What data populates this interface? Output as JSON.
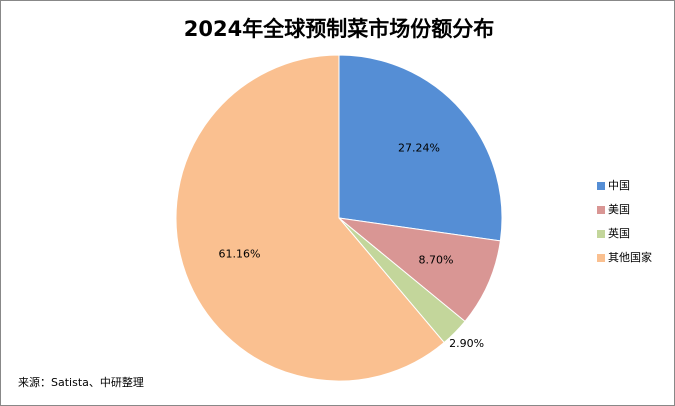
{
  "chart_data": {
    "type": "pie",
    "title": "2024年全球预制菜市场份额分布",
    "categories": [
      "中国",
      "美国",
      "英国",
      "其他国家"
    ],
    "values": [
      27.24,
      8.7,
      2.9,
      61.16
    ],
    "value_labels": [
      "27.24%",
      "8.70%",
      "2.90%",
      "61.16%"
    ],
    "colors": [
      "#558ed5",
      "#d99694",
      "#c3d69b",
      "#fac090"
    ],
    "legend": "right",
    "source": "来源：Satista、中研整理"
  }
}
